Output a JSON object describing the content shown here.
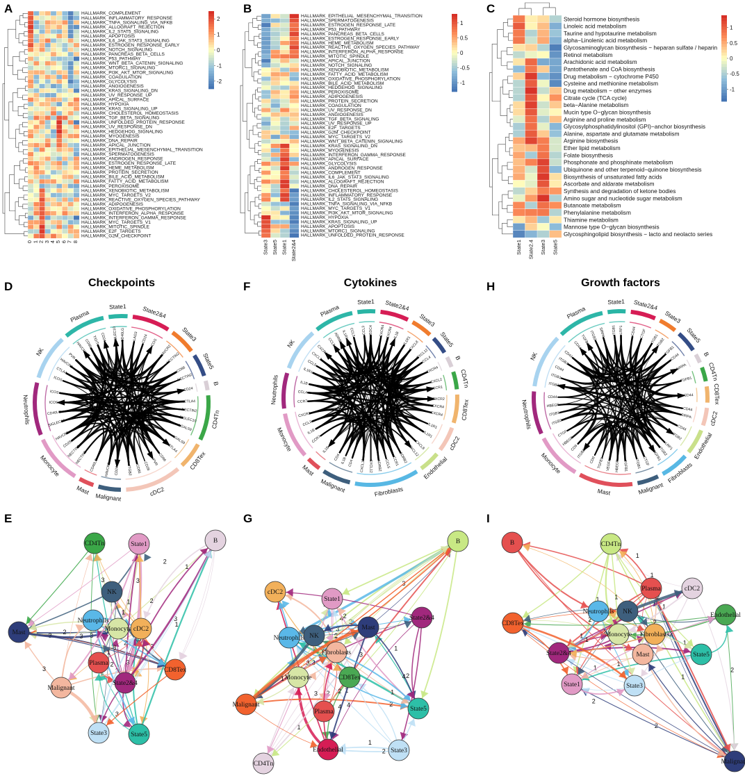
{
  "figure": {
    "panel_labels": [
      "A",
      "B",
      "C",
      "D",
      "E",
      "F",
      "G",
      "H",
      "I"
    ]
  },
  "chart_data": [
    {
      "panel": "A",
      "type": "heatmap",
      "columns": [
        "0",
        "1",
        "2",
        "3",
        "4",
        "5",
        "6",
        "7",
        "8"
      ],
      "rows": [
        "HALLMARK_COMPLEMENT",
        "HALLMARK_INFLAMMATORY_RESPONSE",
        "HALLMARK_TNFA_SIGNALING_VIA_NFKB",
        "HALLMARK_ALLOGRAFT_REJECTION",
        "HALLMARK_IL2_STAT5_SIGNALING",
        "HALLMARK_APOPTOSIS",
        "HALLMARK_IL6_JAK_STAT3_SIGNALING",
        "HALLMARK_ESTROGEN_RESPONSE_EARLY",
        "HALLMARK_NOTCH_SIGNALING",
        "HALLMARK_PANCREAS_BETA_CELLS",
        "HALLMARK_P53_PATHWAY",
        "HALLMARK_WNT_BETA_CATENIN_SIGNALING",
        "HALLMARK_MTORC1_SIGNALING",
        "HALLMARK_PI3K_AKT_MTOR_SIGNALING",
        "HALLMARK_COAGULATION",
        "HALLMARK_GLYCOLYSIS",
        "HALLMARK_ANGIOGENESIS",
        "HALLMARK_KRAS_SIGNALING_DN",
        "HALLMARK_UV_RESPONSE_UP",
        "HALLMARK_APICAL_SURFACE",
        "HALLMARK_HYPOXIA",
        "HALLMARK_KRAS_SIGNALING_UP",
        "HALLMARK_CHOLESTEROL_HOMEOSTASIS",
        "HALLMARK_TGF_BETA_SIGNALING",
        "HALLMARK_UNFOLDED_PROTEIN_RESPONSE",
        "HALLMARK_UV_RESPONSE_DN",
        "HALLMARK_HEDGEHOG_SIGNALING",
        "HALLMARK_MYOGENESIS",
        "HALLMARK_DNA_REPAIR",
        "HALLMARK_APICAL_JUNCTION",
        "HALLMARK_EPITHELIAL_MESENCHYMAL_TRANSITION",
        "HALLMARK_SPERMATOGENESIS",
        "HALLMARK_ANDROGEN_RESPONSE",
        "HALLMARK_ESTROGEN_RESPONSE_LATE",
        "HALLMARK_HEME_METABOLISM",
        "HALLMARK_PROTEIN_SECRETION",
        "HALLMARK_BILE_ACID_METABOLISM",
        "HALLMARK_FATTY_ACID_METABOLISM",
        "HALLMARK_PEROXISOME",
        "HALLMARK_XENOBIOTIC_METABOLISM",
        "HALLMARK_MYC_TARGETS_V2",
        "HALLMARK_REACTIVE_OXYGEN_SPECIES_PATHWAY",
        "HALLMARK_ADIPOGENESIS",
        "HALLMARK_OXIDATIVE_PHOSPHORYLATION",
        "HALLMARK_INTERFERON_ALPHA_RESPONSE",
        "HALLMARK_INTERFERON_GAMMA_RESPONSE",
        "HALLMARK_MYC_TARGETS_V1",
        "HALLMARK_MITOTIC_SPINDLE",
        "HALLMARK_E2F_TARGETS",
        "HALLMARK_G2M_CHECKPOINT"
      ],
      "legend_ticks": [
        "2",
        "1",
        "0",
        "-1",
        "-2"
      ],
      "range": [
        -2.5,
        2.5
      ]
    },
    {
      "panel": "B",
      "type": "heatmap",
      "columns": [
        "State3",
        "State5",
        "State1",
        "State2&4"
      ],
      "rows": [
        "HALLMARK_EPITHELIAL_MESENCHYMAL_TRANSITION",
        "HALLMARK_SPERMATOGENESIS",
        "HALLMARK_ESTROGEN_RESPONSE_LATE",
        "HALLMARK_P53_PATHWAY",
        "HALLMARK_PANCREAS_BETA_CELLS",
        "HALLMARK_ESTROGEN_RESPONSE_EARLY",
        "HALLMARK_HEME_METABOLISM",
        "HALLMARK_REACTIVE_OXYGEN_SPECIES_PATHWAY",
        "HALLMARK_INTERFERON_ALPHA_RESPONSE",
        "HALLMARK_MITOTIC_SPINDLE",
        "HALLMARK_APICAL_JUNCTION",
        "HALLMARK_NOTCH_SIGNALING",
        "HALLMARK_XENOBIOTIC_METABOLISM",
        "HALLMARK_FATTY_ACID_METABOLISM",
        "HALLMARK_OXIDATIVE_PHOSPHORYLATION",
        "HALLMARK_BILE_ACID_METABOLISM",
        "HALLMARK_HEDGEHOG_SIGNALING",
        "HALLMARK_PEROXISOME",
        "HALLMARK_ADIPOGENESIS",
        "HALLMARK_PROTEIN_SECRETION",
        "HALLMARK_COAGULATION",
        "HALLMARK_UV_RESPONSE_DN",
        "HALLMARK_ANGIOGENESIS",
        "HALLMARK_TGF_BETA_SIGNALING",
        "HALLMARK_UV_RESPONSE_UP",
        "HALLMARK_E2F_TARGETS",
        "HALLMARK_G2M_CHECKPOINT",
        "HALLMARK_MYC_TARGETS_V2",
        "HALLMARK_WNT_BETA_CATENIN_SIGNALING",
        "HALLMARK_KRAS_SIGNALING_DN",
        "HALLMARK_MYOGENESIS",
        "HALLMARK_INTERFERON_GAMMA_RESPONSE",
        "HALLMARK_APICAL_SURFACE",
        "HALLMARK_GLYCOLYSIS",
        "HALLMARK_ANDROGEN_RESPONSE",
        "HALLMARK_COMPLEMENT",
        "HALLMARK_IL6_JAK_STAT3_SIGNALING",
        "HALLMARK_ALLOGRAFT_REJECTION",
        "HALLMARK_DNA_REPAIR",
        "HALLMARK_CHOLESTEROL_HOMEOSTASIS",
        "HALLMARK_INFLAMMATORY_RESPONSE",
        "HALLMARK_IL2_STAT5_SIGNALING",
        "HALLMARK_TNFA_SIGNALING_VIA_NFKB",
        "HALLMARK_MYC_TARGETS_V1",
        "HALLMARK_PI3K_AKT_MTOR_SIGNALING",
        "HALLMARK_HYPOXIA",
        "HALLMARK_KRAS_SIGNALING_UP",
        "HALLMARK_APOPTOSIS",
        "HALLMARK_MTORC1_SIGNALING",
        "HALLMARK_UNFOLDED_PROTEIN_RESPONSE"
      ],
      "legend_ticks": [
        "1",
        "0.5",
        "0",
        "-0.5",
        "-1"
      ],
      "range": [
        -1.3,
        1.3
      ]
    },
    {
      "panel": "C",
      "type": "heatmap",
      "columns": [
        "State1",
        "State2.4",
        "State3",
        "State5"
      ],
      "rows": [
        "Steroid hormone biosynthesis",
        "Linoleic acid metabolism",
        "Taurine and hypotaurine metabolism",
        "alpha−Linolenic acid metabolism",
        "Glycosaminoglycan biosynthesis − heparan sulfate / heparin",
        "Retinol metabolism",
        "Arachidonic acid metabolism",
        "Pantothenate and CoA biosynthesis",
        "Drug metabolism − cytochrome P450",
        "Cysteine and methionine metabolism",
        "Drug metabolism − other enzymes",
        "Citrate cycle (TCA cycle)",
        "beta−Alanine metabolism",
        "Mucin type O−glycan biosynthesis",
        "Arginine and proline metabolism",
        "Glycosylphosphatidylinositol (GPI)−anchor biosynthesis",
        "Alanine, aspartate and glutamate metabolism",
        "Arginine biosynthesis",
        "Ether lipid metabolism",
        "Folate biosynthesis",
        "Phosphonate and phosphinate metabolism",
        "Ubiquinone and other terpenoid−quinone biosynthesis",
        "Biosynthesis of unsaturated fatty acids",
        "Ascorbate and aldarate metabolism",
        "Synthesis and degradation of ketone bodies",
        "Amino sugar and nucleotide sugar metabolism",
        "Butanoate metabolism",
        "Phenylalanine metabolism",
        "Thiamine metabolism",
        "Mannose type O−glycan biosynthesis",
        "Glycosphingolipid biosynthesis − lacto and neolacto series"
      ],
      "legend_ticks": [
        "1",
        "0.5",
        "0",
        "-0.5",
        "-1"
      ],
      "range": [
        -1.4,
        1.4
      ]
    },
    {
      "panel": "D",
      "type": "chord",
      "title": "Checkpoints",
      "sectors": [
        {
          "name": "State1",
          "color": "#2ab5a5"
        },
        {
          "name": "State2&4",
          "color": "#d61d55"
        },
        {
          "name": "State3",
          "color": "#f07c2e"
        },
        {
          "name": "State5",
          "color": "#344d86"
        },
        {
          "name": "B",
          "color": "#d9cfd6"
        },
        {
          "name": "CD4Tn",
          "color": "#3ba748"
        },
        {
          "name": "CD8Tex",
          "color": "#f0b46d"
        },
        {
          "name": "cDC2",
          "color": "#f3c6b8"
        },
        {
          "name": "Malignant",
          "color": "#3e5f7d"
        },
        {
          "name": "Mast",
          "color": "#e0505b"
        },
        {
          "name": "Monocyte",
          "color": "#e19ac5"
        },
        {
          "name": "Neutrophils",
          "color": "#a1287d"
        },
        {
          "name": "NK",
          "color": "#a8d3ef"
        },
        {
          "name": "Plasma",
          "color": "#2eb6a8"
        }
      ],
      "genes": [
        "LGALS9",
        "HAVCR2",
        "CD86",
        "SIGLEC10",
        "ITGB2",
        "CD24",
        "CD40LG",
        "CD28",
        "CTLA4",
        "ICOS",
        "TIGIT",
        "PVR",
        "NECTIN2",
        "LAG3"
      ]
    },
    {
      "panel": "F",
      "type": "chord",
      "title": "Cytokines",
      "sectors": [
        {
          "name": "State1",
          "color": "#2ab5a5"
        },
        {
          "name": "State2&4",
          "color": "#d61d55"
        },
        {
          "name": "State3",
          "color": "#f07c2e"
        },
        {
          "name": "State5",
          "color": "#344d86"
        },
        {
          "name": "B",
          "color": "#d9cfd6"
        },
        {
          "name": "CD4Tn",
          "color": "#3ba748"
        },
        {
          "name": "CD8Tex",
          "color": "#f0b46d"
        },
        {
          "name": "cDC2",
          "color": "#f3c6b8"
        },
        {
          "name": "Endothelial",
          "color": "#c9e08a"
        },
        {
          "name": "Fibroblasts",
          "color": "#58b8e4"
        },
        {
          "name": "Malignant",
          "color": "#3e5f7d"
        },
        {
          "name": "Mast",
          "color": "#e0505b"
        },
        {
          "name": "Monocyte",
          "color": "#e19ac5"
        },
        {
          "name": "Neutrophils",
          "color": "#a1287d"
        },
        {
          "name": "NK",
          "color": "#a8d3ef"
        },
        {
          "name": "Plasma",
          "color": "#2eb6a8"
        }
      ],
      "genes": [
        "IL1B",
        "CCR1",
        "CXCR4",
        "CCL5",
        "CCL4",
        "CCL3",
        "CXCL8",
        "CXCL2",
        "CD4",
        "SDC4",
        "IL1R1",
        "CXCL12",
        "ADRB2",
        "CCR7",
        "TNF",
        "CXCR2"
      ]
    },
    {
      "panel": "H",
      "type": "chord",
      "title": "Growth factors",
      "sectors": [
        {
          "name": "State1",
          "color": "#2ab5a5"
        },
        {
          "name": "State2&4",
          "color": "#d61d55"
        },
        {
          "name": "State3",
          "color": "#f07c2e"
        },
        {
          "name": "State5",
          "color": "#344d86"
        },
        {
          "name": "B",
          "color": "#d9cfd6"
        },
        {
          "name": "CD4Tn",
          "color": "#3ba748"
        },
        {
          "name": "CD8Tex",
          "color": "#f0b46d"
        },
        {
          "name": "cDC2",
          "color": "#f3c6b8"
        },
        {
          "name": "Endothelial",
          "color": "#c9e08a"
        },
        {
          "name": "Fibroblasts",
          "color": "#58b8e4"
        },
        {
          "name": "Malignant",
          "color": "#3e5f7d"
        },
        {
          "name": "Mast",
          "color": "#e0505b"
        },
        {
          "name": "Monocyte",
          "color": "#e19ac5"
        },
        {
          "name": "Neutrophils",
          "color": "#a1287d"
        },
        {
          "name": "NK",
          "color": "#a8d3ef"
        },
        {
          "name": "Plasma",
          "color": "#2eb6a8"
        }
      ],
      "genes": [
        "HBEGF",
        "ITGB2",
        "CD44",
        "ITGB1",
        "VEGFA",
        "CD9",
        "SIRPA",
        "LRP1",
        "CTGF",
        "TGFB1"
      ]
    },
    {
      "panel": "E",
      "type": "network",
      "nodes": [
        {
          "name": "CD4Tn",
          "color": "#3ba748"
        },
        {
          "name": "State1",
          "color": "#e19ac5"
        },
        {
          "name": "B",
          "color": "#e4d3e0"
        },
        {
          "name": "NK",
          "color": "#3e5f7d"
        },
        {
          "name": "Neutrophils",
          "color": "#5ab8e8"
        },
        {
          "name": "Monocyte",
          "color": "#d7e6a6"
        },
        {
          "name": "cDC2",
          "color": "#f2b05a"
        },
        {
          "name": "Mast",
          "color": "#2e3d7a"
        },
        {
          "name": "Plasma",
          "color": "#e5504f"
        },
        {
          "name": "CD8Tex",
          "color": "#f2622e"
        },
        {
          "name": "State2&4",
          "color": "#a1287d"
        },
        {
          "name": "Malignant",
          "color": "#f3b79f"
        },
        {
          "name": "State3",
          "color": "#bfe0f5"
        },
        {
          "name": "State5",
          "color": "#2dbfa7"
        }
      ],
      "edge_labels": [
        "1",
        "2",
        "3"
      ]
    },
    {
      "panel": "G",
      "type": "network",
      "nodes": [
        {
          "name": "B",
          "color": "#c8e884"
        },
        {
          "name": "cDC2",
          "color": "#f2b05a"
        },
        {
          "name": "State1",
          "color": "#e19ac5"
        },
        {
          "name": "Mast",
          "color": "#2e3d7a"
        },
        {
          "name": "State2&4",
          "color": "#a1287d"
        },
        {
          "name": "Neutrophils",
          "color": "#5ab8e8"
        },
        {
          "name": "NK",
          "color": "#3e5f7d"
        },
        {
          "name": "Fibroblasts",
          "color": "#f3b79f"
        },
        {
          "name": "Monocyte",
          "color": "#d7e6a6"
        },
        {
          "name": "CD8Tex",
          "color": "#4aa853"
        },
        {
          "name": "Malignant",
          "color": "#f2622e"
        },
        {
          "name": "Plasma",
          "color": "#e5504f"
        },
        {
          "name": "State5",
          "color": "#2dbfa7"
        },
        {
          "name": "State3",
          "color": "#bfe0f5"
        },
        {
          "name": "Endothelial",
          "color": "#d61d55"
        },
        {
          "name": "CD4Tn",
          "color": "#e4d3e0"
        }
      ],
      "edge_labels": [
        "1",
        "2",
        "3",
        "4"
      ]
    },
    {
      "panel": "I",
      "type": "network",
      "nodes": [
        {
          "name": "B",
          "color": "#e5504f"
        },
        {
          "name": "CD4Tn",
          "color": "#c8e884"
        },
        {
          "name": "Plasma",
          "color": "#e5504f"
        },
        {
          "name": "cDC2",
          "color": "#e4d3e0"
        },
        {
          "name": "Neutrophils",
          "color": "#5ab8e8"
        },
        {
          "name": "NK",
          "color": "#3e5f7d"
        },
        {
          "name": "Endothelial",
          "color": "#4aa853"
        },
        {
          "name": "CD8Tex",
          "color": "#f2622e"
        },
        {
          "name": "Monocyte",
          "color": "#d7e6a6"
        },
        {
          "name": "Fibroblasts",
          "color": "#f2b05a"
        },
        {
          "name": "State2&4",
          "color": "#a1287d"
        },
        {
          "name": "Mast",
          "color": "#f3b79f"
        },
        {
          "name": "State5",
          "color": "#2dbfa7"
        },
        {
          "name": "State1",
          "color": "#e19ac5"
        },
        {
          "name": "State3",
          "color": "#bfe0f5"
        },
        {
          "name": "Malignant",
          "color": "#2e3d7a"
        }
      ],
      "edge_labels": [
        "1",
        "2"
      ]
    }
  ]
}
